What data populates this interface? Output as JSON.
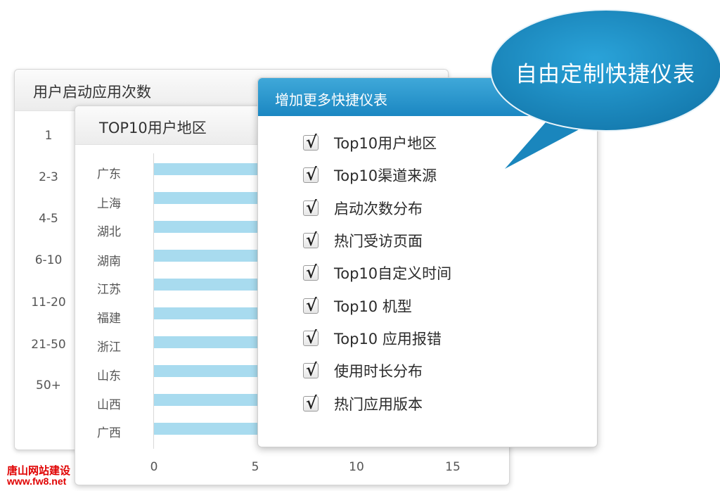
{
  "launch_card": {
    "title": "用户启动应用次数",
    "ranges": [
      "1",
      "2-3",
      "4-5",
      "6-10",
      "11-20",
      "21-50",
      "50+"
    ]
  },
  "region_card": {
    "title": "TOP10用户地区",
    "chart_data": {
      "type": "bar",
      "orientation": "horizontal",
      "categories": [
        "广东",
        "上海",
        "湖北",
        "湖南",
        "江苏",
        "福建",
        "浙江",
        "山东",
        "山西",
        "广西"
      ],
      "x_ticks": [
        "0",
        "5",
        "10",
        "15"
      ],
      "xlim": [
        0,
        17
      ],
      "bar_color": "#a8dbef"
    }
  },
  "dashboard_card": {
    "title": "增加更多快捷仪表",
    "header_color": "#1b87c2",
    "check_mark": "√",
    "options": [
      {
        "label": "Top10用户地区",
        "checked": true
      },
      {
        "label": "Top10渠道来源",
        "checked": true
      },
      {
        "label": "启动次数分布",
        "checked": true
      },
      {
        "label": "热门受访页面",
        "checked": true
      },
      {
        "label": "Top10自定义时间",
        "checked": true
      },
      {
        "label": "Top10 机型",
        "checked": true
      },
      {
        "label": "Top10 应用报错",
        "checked": true
      },
      {
        "label": "使用时长分布",
        "checked": true
      },
      {
        "label": "热门应用版本",
        "checked": true
      }
    ]
  },
  "bubble": {
    "text": "自由定制快捷仪表",
    "color": "#1a8ec5"
  },
  "watermark": {
    "line1": "唐山网站建设",
    "line2": "www.fw8.net"
  }
}
